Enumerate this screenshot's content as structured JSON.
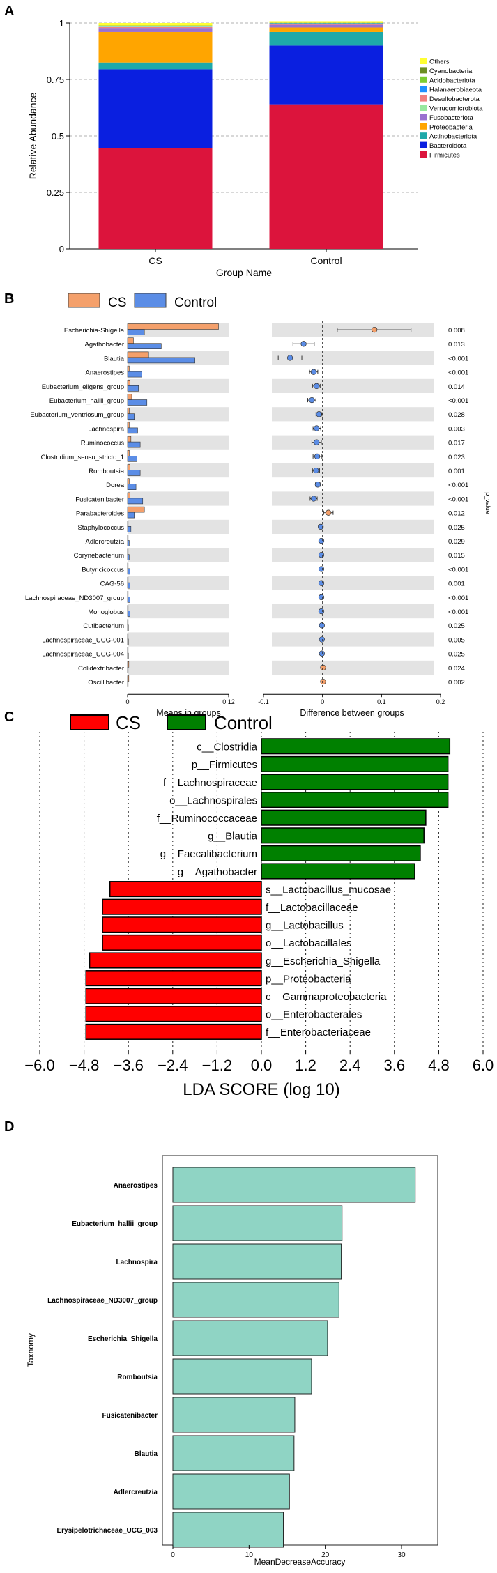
{
  "panels": [
    "A",
    "B",
    "C",
    "D"
  ],
  "chart_data": [
    {
      "id": "A",
      "type": "bar",
      "stacked": true,
      "xlabel": "Group Name",
      "ylabel": "Relative Abundance",
      "ylim": [
        0,
        1
      ],
      "yticks": [
        "0",
        "0.25",
        "0.5",
        "0.75",
        "1"
      ],
      "categories": [
        "CS",
        "Control"
      ],
      "series": [
        {
          "name": "Firmicutes",
          "color": "#dc143c",
          "values": [
            0.445,
            0.64
          ]
        },
        {
          "name": "Bacteroidota",
          "color": "#0a1fe0",
          "values": [
            0.35,
            0.26
          ]
        },
        {
          "name": "Actinobacteriota",
          "color": "#1ea9a9",
          "values": [
            0.03,
            0.06
          ]
        },
        {
          "name": "Proteobacteria",
          "color": "#ffa500",
          "values": [
            0.135,
            0.02
          ]
        },
        {
          "name": "Fusobacteriota",
          "color": "#9a70d0",
          "values": [
            0.018,
            0.012
          ]
        },
        {
          "name": "Desulfobacterota",
          "color": "#f08080",
          "values": [
            0.004,
            0.003
          ]
        },
        {
          "name": "Verrucomicrobiota",
          "color": "#98e8a0",
          "values": [
            0.002,
            0.002
          ]
        },
        {
          "name": "Halanaerobiaeota",
          "color": "#1e90ff",
          "values": [
            0.002,
            0.002
          ]
        },
        {
          "name": "Acidobacteriota",
          "color": "#7ccd32",
          "values": [
            0.002,
            0.001
          ]
        },
        {
          "name": "Cyanobacteria",
          "color": "#6b8e23",
          "values": [
            0.001,
            0.001
          ]
        },
        {
          "name": "Others",
          "color": "#ffff33",
          "values": [
            0.011,
            0.007
          ]
        }
      ],
      "legend_order": [
        "Others",
        "Cyanobacteria",
        "Acidobacteriota",
        "Halanaerobiaeota",
        "Desulfobacterota",
        "Verrucomicrobiota",
        "Fusobacteriota",
        "Proteobacteria",
        "Actinobacteriota",
        "Bacteroidota",
        "Firmicutes"
      ]
    },
    {
      "id": "B",
      "type": "bar",
      "orientation": "horizontal",
      "legend": [
        {
          "name": "CS",
          "color": "#f4a06b"
        },
        {
          "name": "Control",
          "color": "#5b8de6"
        }
      ],
      "left_xlabel": "Means in groups",
      "left_xlim": [
        0,
        0.12
      ],
      "left_xticks": [
        "0",
        "0.12"
      ],
      "right_xlabel": "Difference between groups",
      "right_xlim": [
        -0.1,
        0.2
      ],
      "right_xticks": [
        "-0.1",
        "0",
        "0.1",
        "0.2"
      ],
      "pvalue_label": "p_value",
      "rows": [
        {
          "taxon": "Escherichia-Shigella",
          "cs": 0.108,
          "control": 0.02,
          "diff": 0.088,
          "ci_low": 0.025,
          "ci_high": 0.15,
          "p": "0.008"
        },
        {
          "taxon": "Agathobacter",
          "cs": 0.007,
          "control": 0.04,
          "diff": -0.032,
          "ci_low": -0.05,
          "ci_high": -0.014,
          "p": "0.013"
        },
        {
          "taxon": "Blautia",
          "cs": 0.025,
          "control": 0.08,
          "diff": -0.055,
          "ci_low": -0.075,
          "ci_high": -0.035,
          "p": "<0.001"
        },
        {
          "taxon": "Anaerostipes",
          "cs": 0.002,
          "control": 0.017,
          "diff": -0.015,
          "ci_low": -0.022,
          "ci_high": -0.008,
          "p": "<0.001"
        },
        {
          "taxon": "Eubacterium_eligens_group",
          "cs": 0.003,
          "control": 0.013,
          "diff": -0.01,
          "ci_low": -0.017,
          "ci_high": -0.004,
          "p": "0.014"
        },
        {
          "taxon": "Eubacterium_hallii_group",
          "cs": 0.005,
          "control": 0.023,
          "diff": -0.018,
          "ci_low": -0.025,
          "ci_high": -0.011,
          "p": "<0.001"
        },
        {
          "taxon": "Eubacterium_ventriosum_group",
          "cs": 0.002,
          "control": 0.008,
          "diff": -0.006,
          "ci_low": -0.011,
          "ci_high": -0.001,
          "p": "0.028"
        },
        {
          "taxon": "Lachnospira",
          "cs": 0.002,
          "control": 0.012,
          "diff": -0.01,
          "ci_low": -0.016,
          "ci_high": -0.003,
          "p": "0.003"
        },
        {
          "taxon": "Ruminococcus",
          "cs": 0.004,
          "control": 0.015,
          "diff": -0.01,
          "ci_low": -0.018,
          "ci_high": -0.002,
          "p": "0.017"
        },
        {
          "taxon": "Clostridium_sensu_stricto_1",
          "cs": 0.002,
          "control": 0.011,
          "diff": -0.009,
          "ci_low": -0.016,
          "ci_high": -0.001,
          "p": "0.023"
        },
        {
          "taxon": "Romboutsia",
          "cs": 0.003,
          "control": 0.015,
          "diff": -0.011,
          "ci_low": -0.017,
          "ci_high": -0.005,
          "p": "0.001"
        },
        {
          "taxon": "Dorea",
          "cs": 0.002,
          "control": 0.01,
          "diff": -0.008,
          "ci_low": -0.012,
          "ci_high": -0.004,
          "p": "<0.001"
        },
        {
          "taxon": "Fusicatenibacter",
          "cs": 0.003,
          "control": 0.018,
          "diff": -0.015,
          "ci_low": -0.021,
          "ci_high": -0.009,
          "p": "<0.001"
        },
        {
          "taxon": "Parabacteroides",
          "cs": 0.02,
          "control": 0.008,
          "diff": 0.01,
          "ci_low": 0.002,
          "ci_high": 0.018,
          "p": "0.012"
        },
        {
          "taxon": "Staphylococcus",
          "cs": 0.0005,
          "control": 0.004,
          "diff": -0.003,
          "ci_low": -0.006,
          "ci_high": -0.001,
          "p": "0.025"
        },
        {
          "taxon": "Adlercreutzia",
          "cs": 0.0005,
          "control": 0.002,
          "diff": -0.002,
          "ci_low": -0.004,
          "ci_high": 0.0,
          "p": "0.029"
        },
        {
          "taxon": "Corynebacterium",
          "cs": 0.0005,
          "control": 0.002,
          "diff": -0.002,
          "ci_low": -0.004,
          "ci_high": 0.0,
          "p": "0.015"
        },
        {
          "taxon": "Butyricicoccus",
          "cs": 0.0005,
          "control": 0.003,
          "diff": -0.002,
          "ci_low": -0.004,
          "ci_high": -0.001,
          "p": "<0.001"
        },
        {
          "taxon": "CAG-56",
          "cs": 0.0005,
          "control": 0.003,
          "diff": -0.002,
          "ci_low": -0.004,
          "ci_high": -0.001,
          "p": "0.001"
        },
        {
          "taxon": "Lachnospiraceae_ND3007_group",
          "cs": 0.0005,
          "control": 0.003,
          "diff": -0.002,
          "ci_low": -0.004,
          "ci_high": -0.001,
          "p": "<0.001"
        },
        {
          "taxon": "Monoglobus",
          "cs": 0.0005,
          "control": 0.003,
          "diff": -0.002,
          "ci_low": -0.004,
          "ci_high": -0.001,
          "p": "<0.001"
        },
        {
          "taxon": "Cutibacterium",
          "cs": 0.0002,
          "control": 0.001,
          "diff": -0.001,
          "ci_low": -0.002,
          "ci_high": 0.0,
          "p": "0.025"
        },
        {
          "taxon": "Lachnospiraceae_UCG-001",
          "cs": 0.0002,
          "control": 0.001,
          "diff": -0.001,
          "ci_low": -0.002,
          "ci_high": 0.0,
          "p": "0.005"
        },
        {
          "taxon": "Lachnospiraceae_UCG-004",
          "cs": 0.0002,
          "control": 0.001,
          "diff": -0.001,
          "ci_low": -0.002,
          "ci_high": 0.0,
          "p": "0.025"
        },
        {
          "taxon": "Colidextribacter",
          "cs": 0.0015,
          "control": 0.0005,
          "diff": 0.001,
          "ci_low": 0.0,
          "ci_high": 0.002,
          "p": "0.024"
        },
        {
          "taxon": "Oscillibacter",
          "cs": 0.0015,
          "control": 0.0005,
          "diff": 0.001,
          "ci_low": 0.0,
          "ci_high": 0.002,
          "p": "0.002"
        }
      ]
    },
    {
      "id": "C",
      "type": "bar",
      "orientation": "horizontal",
      "legend": [
        {
          "name": "CS",
          "color": "#ff0000"
        },
        {
          "name": "Control",
          "color": "#008000"
        }
      ],
      "xlabel": "LDA SCORE (log 10)",
      "xlim": [
        -6,
        6
      ],
      "xticks": [
        "−6.0",
        "−4.8",
        "−3.6",
        "−2.4",
        "−1.2",
        "0.0",
        "1.2",
        "2.4",
        "3.6",
        "4.8",
        "6.0"
      ],
      "rows": [
        {
          "taxon": "c__Clostridia",
          "group": "Control",
          "value": 5.1
        },
        {
          "taxon": "p__Firmicutes",
          "group": "Control",
          "value": 5.05
        },
        {
          "taxon": "f__Lachnospiraceae",
          "group": "Control",
          "value": 5.05
        },
        {
          "taxon": "o__Lachnospirales",
          "group": "Control",
          "value": 5.05
        },
        {
          "taxon": "f__Ruminococcaceae",
          "group": "Control",
          "value": 4.45
        },
        {
          "taxon": "g__Blautia",
          "group": "Control",
          "value": 4.4
        },
        {
          "taxon": "g__Faecalibacterium",
          "group": "Control",
          "value": 4.3
        },
        {
          "taxon": "g__Agathobacter",
          "group": "Control",
          "value": 4.15
        },
        {
          "taxon": "s__Lactobacillus_mucosae",
          "group": "CS",
          "value": -4.1
        },
        {
          "taxon": "f__Lactobacillaceae",
          "group": "CS",
          "value": -4.3
        },
        {
          "taxon": "g__Lactobacillus",
          "group": "CS",
          "value": -4.3
        },
        {
          "taxon": "o__Lactobacillales",
          "group": "CS",
          "value": -4.3
        },
        {
          "taxon": "g__Escherichia_Shigella",
          "group": "CS",
          "value": -4.65
        },
        {
          "taxon": "p__Proteobacteria",
          "group": "CS",
          "value": -4.75
        },
        {
          "taxon": "c__Gammaproteobacteria",
          "group": "CS",
          "value": -4.75
        },
        {
          "taxon": "o__Enterobacterales",
          "group": "CS",
          "value": -4.75
        },
        {
          "taxon": "f__Enterobacteriaceae",
          "group": "CS",
          "value": -4.75
        }
      ]
    },
    {
      "id": "D",
      "type": "bar",
      "orientation": "horizontal",
      "xlabel": "MeanDecreaseAccuracy",
      "ylabel": "Taxnomy",
      "xlim": [
        0,
        35
      ],
      "xticks": [
        "0",
        "10",
        "20",
        "30"
      ],
      "color": "#8fd4c4",
      "categories": [
        "Anaerostipes",
        "Eubacterium_hallii_group",
        "Lachnospira",
        "Lachnospiraceae_ND3007_group",
        "Escherichia_Shigella",
        "Romboutsia",
        "Fusicatenibacter",
        "Blautia",
        "Adlercreutzia",
        "Erysipelotrichaceae_UCG_003"
      ],
      "values": [
        31.8,
        22.2,
        22.1,
        21.8,
        20.3,
        18.2,
        16.0,
        15.9,
        15.3,
        14.5
      ]
    }
  ]
}
